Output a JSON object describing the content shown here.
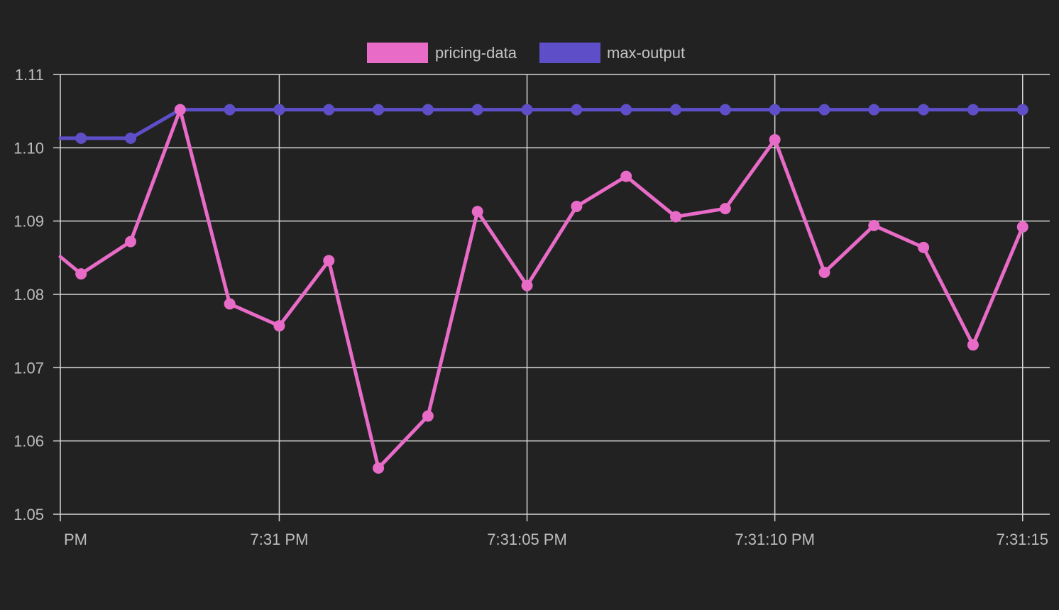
{
  "chart_data": {
    "type": "line",
    "title": "",
    "xlabel": "",
    "ylabel": "",
    "ylim": [
      1.05,
      1.11
    ],
    "y_ticks": [
      "1.11",
      "1.10",
      "1.09",
      "1.08",
      "1.07",
      "1.06",
      "1.05"
    ],
    "y_tick_values": [
      1.11,
      1.1,
      1.09,
      1.08,
      1.07,
      1.06,
      1.05
    ],
    "x_tick_labels": [
      {
        "label": "PM",
        "index": 0.0
      },
      {
        "label": "7:31 PM",
        "index": 4.7
      },
      {
        "label": "7:31:05 PM",
        "index": 9.7
      },
      {
        "label": "7:31:10 PM",
        "index": 14.7
      },
      {
        "label": "7:31:15",
        "index": 19.7
      }
    ],
    "grid": true,
    "legend_position": "top-center",
    "x": [
      0.0,
      0.7,
      1.7,
      2.7,
      3.7,
      4.7,
      5.7,
      6.7,
      7.7,
      8.7,
      9.7,
      10.7,
      11.7,
      12.7,
      13.7,
      14.7,
      15.7,
      16.7,
      17.7,
      18.7,
      19.7
    ],
    "series": [
      {
        "name": "pricing-data",
        "color": "#e86bc7",
        "values": [
          1.0867,
          1.0828,
          1.0872,
          1.1052,
          1.0787,
          1.0757,
          1.0846,
          1.0563,
          1.0634,
          1.0913,
          1.0812,
          1.092,
          1.0961,
          1.0906,
          1.0917,
          1.1011,
          1.083,
          1.0894,
          1.0864,
          1.0731,
          1.0892
        ]
      },
      {
        "name": "max-output",
        "color": "#5e4fc8",
        "values": [
          1.1013,
          1.1013,
          1.1013,
          1.1052,
          1.1052,
          1.1052,
          1.1052,
          1.1052,
          1.1052,
          1.1052,
          1.1052,
          1.1052,
          1.1052,
          1.1052,
          1.1052,
          1.1052,
          1.1052,
          1.1052,
          1.1052,
          1.1052,
          1.1052
        ]
      }
    ]
  },
  "colors": {
    "background": "#222222",
    "grid": "#d6d6d6",
    "text": "#bdbdbd"
  }
}
